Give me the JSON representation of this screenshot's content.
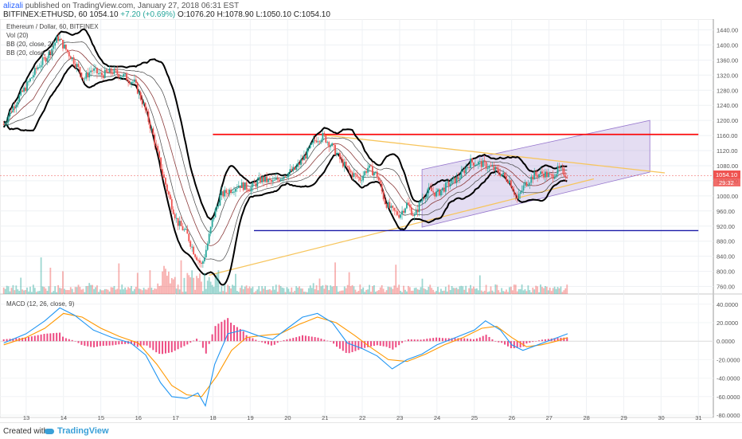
{
  "header": {
    "author": "alizali",
    "published_text": "published on TradingView.com, January 27, 2018 06:31 EST",
    "symbol": "BITFINEX:ETHUSD, 60",
    "last": "1054.10",
    "change": "+7.20 (+0.69%)",
    "open": "O:1076.20",
    "high": "H:1078.90",
    "low": "L:1050.10",
    "close": "C:1054.10"
  },
  "legend": {
    "pair": "Ethereum / Dollar, 60, BITFINEX",
    "vol": "Vol (20)",
    "bb1": "BB (20, close, 2)",
    "bb2": "BB (20, close, 1)",
    "macd": "MACD (12, 26, close, 9)"
  },
  "price_tags": {
    "last": "1054.10",
    "countdown": "29:32"
  },
  "footer": {
    "created": "Created with",
    "brand": "TradingView"
  },
  "colors": {
    "up_candle": "#26a69a",
    "down_candle": "#ef5350",
    "resistance": "#ff0000",
    "support": "#1a1aa8",
    "trendline": "#f7c55c",
    "channel_fill": "#b39ddb",
    "macd_line": "#2196f3",
    "signal_line": "#ff9800",
    "histogram": "#e91e63"
  },
  "chart_data": [
    {
      "type": "line",
      "series_type": "candlestick",
      "x_ticks": [
        "13",
        "14",
        "15",
        "16",
        "17",
        "18",
        "19",
        "20",
        "21",
        "22",
        "23",
        "24",
        "25",
        "26",
        "27",
        "28",
        "29",
        "30",
        "31"
      ],
      "y_ticks": [
        "1440.00",
        "1400.00",
        "1360.00",
        "1320.00",
        "1280.00",
        "1240.00",
        "1200.00",
        "1160.00",
        "1120.00",
        "1080.00",
        "1040.00",
        "1000.00",
        "960.00",
        "920.00",
        "880.00",
        "840.00",
        "800.00",
        "760.00"
      ],
      "ylim": [
        740,
        1460
      ],
      "xlim": [
        12.3,
        31.4
      ],
      "close_path": [
        {
          "day": 12.4,
          "price": 1190
        },
        {
          "day": 12.7,
          "price": 1245
        },
        {
          "day": 13.0,
          "price": 1290
        },
        {
          "day": 13.3,
          "price": 1340
        },
        {
          "day": 13.6,
          "price": 1375
        },
        {
          "day": 13.85,
          "price": 1420
        },
        {
          "day": 14.05,
          "price": 1390
        },
        {
          "day": 14.3,
          "price": 1355
        },
        {
          "day": 14.55,
          "price": 1310
        },
        {
          "day": 14.75,
          "price": 1335
        },
        {
          "day": 15.0,
          "price": 1320
        },
        {
          "day": 15.3,
          "price": 1330
        },
        {
          "day": 15.6,
          "price": 1318
        },
        {
          "day": 15.9,
          "price": 1300
        },
        {
          "day": 16.15,
          "price": 1240
        },
        {
          "day": 16.4,
          "price": 1160
        },
        {
          "day": 16.65,
          "price": 1060
        },
        {
          "day": 16.85,
          "price": 990
        },
        {
          "day": 17.05,
          "price": 930
        },
        {
          "day": 17.3,
          "price": 900
        },
        {
          "day": 17.5,
          "price": 850
        },
        {
          "day": 17.7,
          "price": 815
        },
        {
          "day": 17.85,
          "price": 870
        },
        {
          "day": 18.0,
          "price": 940
        },
        {
          "day": 18.2,
          "price": 1000
        },
        {
          "day": 18.45,
          "price": 1015
        },
        {
          "day": 18.7,
          "price": 1030
        },
        {
          "day": 19.0,
          "price": 1020
        },
        {
          "day": 19.3,
          "price": 1045
        },
        {
          "day": 19.6,
          "price": 1035
        },
        {
          "day": 19.9,
          "price": 1055
        },
        {
          "day": 20.2,
          "price": 1070
        },
        {
          "day": 20.5,
          "price": 1110
        },
        {
          "day": 20.75,
          "price": 1150
        },
        {
          "day": 20.95,
          "price": 1158
        },
        {
          "day": 21.2,
          "price": 1130
        },
        {
          "day": 21.45,
          "price": 1090
        },
        {
          "day": 21.7,
          "price": 1060
        },
        {
          "day": 21.95,
          "price": 1045
        },
        {
          "day": 22.15,
          "price": 1075
        },
        {
          "day": 22.4,
          "price": 1055
        },
        {
          "day": 22.6,
          "price": 985
        },
        {
          "day": 22.8,
          "price": 960
        },
        {
          "day": 23.0,
          "price": 950
        },
        {
          "day": 23.2,
          "price": 980
        },
        {
          "day": 23.4,
          "price": 945
        },
        {
          "day": 23.6,
          "price": 995
        },
        {
          "day": 23.8,
          "price": 1015
        },
        {
          "day": 24.0,
          "price": 1005
        },
        {
          "day": 24.3,
          "price": 1030
        },
        {
          "day": 24.6,
          "price": 1050
        },
        {
          "day": 24.9,
          "price": 1090
        },
        {
          "day": 25.2,
          "price": 1085
        },
        {
          "day": 25.45,
          "price": 1075
        },
        {
          "day": 25.7,
          "price": 1060
        },
        {
          "day": 25.95,
          "price": 1040
        },
        {
          "day": 26.15,
          "price": 990
        },
        {
          "day": 26.35,
          "price": 1030
        },
        {
          "day": 26.6,
          "price": 1055
        },
        {
          "day": 26.85,
          "price": 1060
        },
        {
          "day": 27.05,
          "price": 1050
        },
        {
          "day": 27.25,
          "price": 1070
        },
        {
          "day": 27.5,
          "price": 1054
        }
      ],
      "drawings": {
        "resistance": {
          "price": 1163,
          "from_day": 18.0,
          "to_day": 31.0
        },
        "support": {
          "price": 908,
          "from_day": 19.1,
          "to_day": 31.0
        },
        "rising_trendline": {
          "from": {
            "day": 17.9,
            "price": 790
          },
          "to": {
            "day": 28.2,
            "price": 1045
          }
        },
        "falling_trendline": {
          "from": {
            "day": 20.9,
            "price": 1162
          },
          "to": {
            "day": 30.1,
            "price": 1061
          }
        },
        "channel": {
          "p1": {
            "day": 23.6,
            "price": 1070
          },
          "p2": {
            "day": 29.7,
            "price": 1200
          },
          "p3": {
            "day": 29.7,
            "price": 1063
          },
          "p4": {
            "day": 23.6,
            "price": 917
          }
        }
      }
    },
    {
      "type": "bar",
      "name": "MACD (12, 26, close, 9)",
      "y_ticks": [
        "40.0000",
        "20.0000",
        "0.0000",
        "-20.0000",
        "-40.0000",
        "-60.0000",
        "-80.0000"
      ],
      "ylim": [
        -80,
        45
      ],
      "macd_line": [
        {
          "day": 12.4,
          "value": -2
        },
        {
          "day": 13.0,
          "value": 8
        },
        {
          "day": 13.5,
          "value": 22
        },
        {
          "day": 13.9,
          "value": 36
        },
        {
          "day": 14.3,
          "value": 28
        },
        {
          "day": 14.8,
          "value": 12
        },
        {
          "day": 15.3,
          "value": 4
        },
        {
          "day": 15.8,
          "value": -2
        },
        {
          "day": 16.2,
          "value": -15
        },
        {
          "day": 16.6,
          "value": -45
        },
        {
          "day": 16.9,
          "value": -60
        },
        {
          "day": 17.3,
          "value": -62
        },
        {
          "day": 17.6,
          "value": -56
        },
        {
          "day": 17.8,
          "value": -70
        },
        {
          "day": 18.05,
          "value": -25
        },
        {
          "day": 18.4,
          "value": 8
        },
        {
          "day": 18.8,
          "value": 12
        },
        {
          "day": 19.2,
          "value": 6
        },
        {
          "day": 19.6,
          "value": 2
        },
        {
          "day": 20.0,
          "value": 14
        },
        {
          "day": 20.4,
          "value": 26
        },
        {
          "day": 20.8,
          "value": 30
        },
        {
          "day": 21.2,
          "value": 20
        },
        {
          "day": 21.6,
          "value": -2
        },
        {
          "day": 22.0,
          "value": -8
        },
        {
          "day": 22.4,
          "value": -16
        },
        {
          "day": 22.8,
          "value": -30
        },
        {
          "day": 23.2,
          "value": -20
        },
        {
          "day": 23.6,
          "value": -14
        },
        {
          "day": 24.0,
          "value": -4
        },
        {
          "day": 24.5,
          "value": 4
        },
        {
          "day": 25.0,
          "value": 12
        },
        {
          "day": 25.3,
          "value": 22
        },
        {
          "day": 25.7,
          "value": 12
        },
        {
          "day": 26.0,
          "value": -4
        },
        {
          "day": 26.3,
          "value": -10
        },
        {
          "day": 26.7,
          "value": -4
        },
        {
          "day": 27.1,
          "value": 2
        },
        {
          "day": 27.5,
          "value": 8
        }
      ],
      "signal_line": [
        {
          "day": 12.4,
          "value": -4
        },
        {
          "day": 13.0,
          "value": 4
        },
        {
          "day": 13.5,
          "value": 14
        },
        {
          "day": 14.0,
          "value": 30
        },
        {
          "day": 14.5,
          "value": 26
        },
        {
          "day": 15.0,
          "value": 14
        },
        {
          "day": 15.5,
          "value": 5
        },
        {
          "day": 16.0,
          "value": -2
        },
        {
          "day": 16.5,
          "value": -25
        },
        {
          "day": 16.9,
          "value": -48
        },
        {
          "day": 17.3,
          "value": -58
        },
        {
          "day": 17.7,
          "value": -60
        },
        {
          "day": 18.1,
          "value": -38
        },
        {
          "day": 18.5,
          "value": -10
        },
        {
          "day": 18.9,
          "value": 4
        },
        {
          "day": 19.3,
          "value": 6
        },
        {
          "day": 19.8,
          "value": 8
        },
        {
          "day": 20.3,
          "value": 18
        },
        {
          "day": 20.8,
          "value": 26
        },
        {
          "day": 21.3,
          "value": 20
        },
        {
          "day": 21.8,
          "value": 6
        },
        {
          "day": 22.2,
          "value": -6
        },
        {
          "day": 22.7,
          "value": -20
        },
        {
          "day": 23.2,
          "value": -22
        },
        {
          "day": 23.7,
          "value": -14
        },
        {
          "day": 24.2,
          "value": -4
        },
        {
          "day": 24.7,
          "value": 4
        },
        {
          "day": 25.2,
          "value": 14
        },
        {
          "day": 25.6,
          "value": 16
        },
        {
          "day": 26.0,
          "value": 4
        },
        {
          "day": 26.4,
          "value": -6
        },
        {
          "day": 26.8,
          "value": -4
        },
        {
          "day": 27.2,
          "value": 0
        },
        {
          "day": 27.5,
          "value": 4
        }
      ]
    }
  ]
}
